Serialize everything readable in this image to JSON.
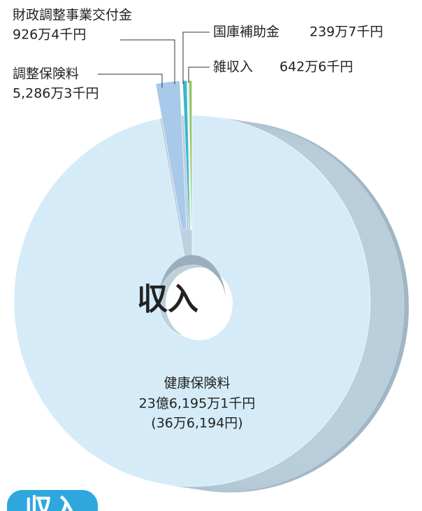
{
  "chart_data": {
    "type": "pie",
    "center_label": "収入",
    "tab_label": "収入",
    "categories": [
      "健康保険料",
      "調整保険料",
      "財政調整事業交付金",
      "国庫補助金",
      "雑収入"
    ],
    "values": [
      2361951,
      52863,
      9264,
      2397,
      6426
    ],
    "value_labels": [
      "23億6,195万1千円",
      "5,286万3千円",
      "926万4千円",
      "239万7千円",
      "642万6千円"
    ],
    "sub_labels": [
      "(36万6,194円)",
      null,
      null,
      null,
      null
    ],
    "colors": [
      "#d5ecf8",
      "#a9c9ea",
      "#38b6cf",
      "#bfe4f1",
      "#8fc15b"
    ]
  }
}
